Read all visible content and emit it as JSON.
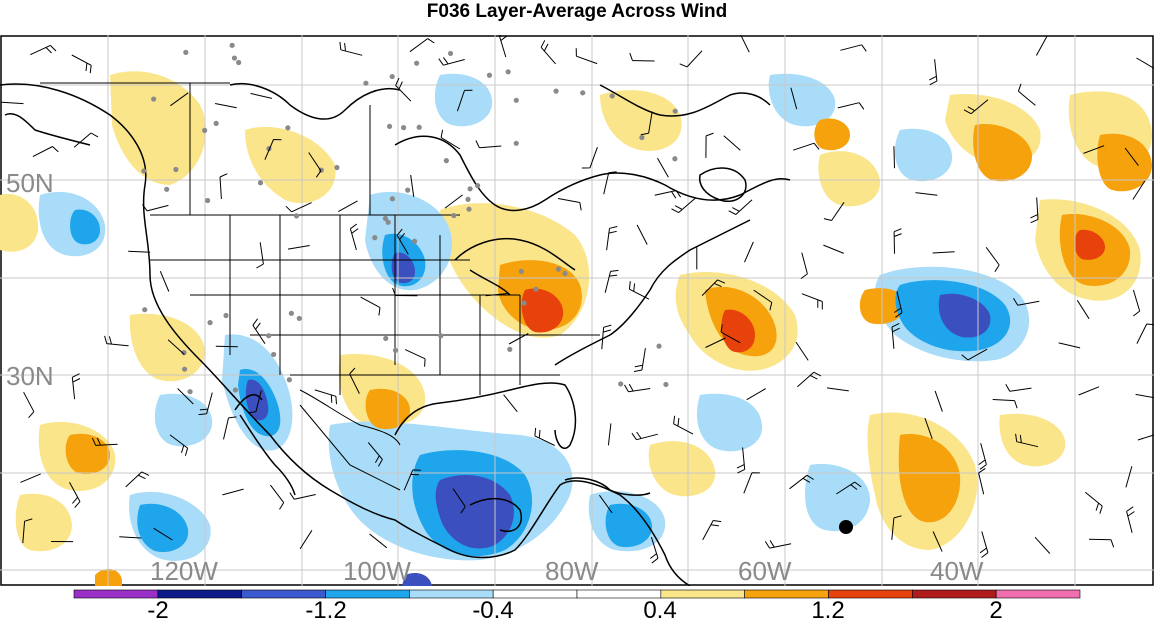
{
  "title": "F036 Layer-Average Across Wind",
  "latitude_labels": [
    "50N",
    "30N"
  ],
  "longitude_labels": [
    "120W",
    "100W",
    "80W",
    "60W",
    "40W"
  ],
  "colorbar": {
    "colors": [
      "#9b30c8",
      "#0c1a8a",
      "#3c5ad0",
      "#1ea5ec",
      "#a8dcf8",
      "#ffffff",
      "#ffffff",
      "#fbe58a",
      "#f5a20c",
      "#e8420c",
      "#b01c1c",
      "#f06fae"
    ],
    "tick_labels": [
      "-2",
      "-1.2",
      "-0.4",
      "0.4",
      "1.2",
      "2"
    ]
  },
  "colors": {
    "strong_negative": "#3c4fbe",
    "negative": "#1ea5ec",
    "weak_negative": "#a8dcf8",
    "weak_positive": "#fbe58a",
    "positive": "#f5a20c",
    "strong_positive": "#e8420c",
    "station": "#8a8a8a",
    "grid": "#c8c8c8"
  }
}
